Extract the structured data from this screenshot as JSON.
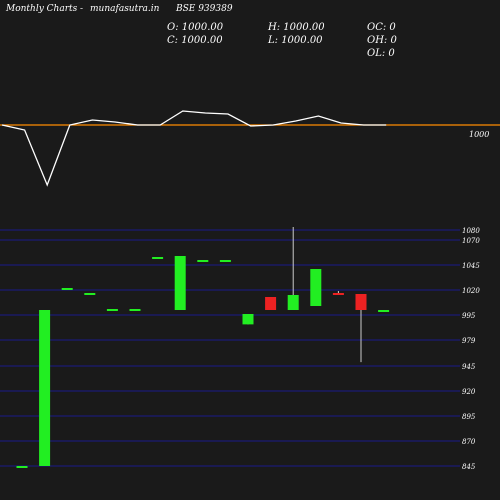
{
  "header": {
    "title": "Monthly Charts",
    "separator": "-",
    "site": "munafasutra.in",
    "symbol": "BSE 939389"
  },
  "ohlc": {
    "o": "O: 1000.00",
    "h": "H: 1000.00",
    "oc": "OC: 0",
    "c": "C: 1000.00",
    "l": "L: 1000.00",
    "oh": "OH: 0",
    "ol": "OL: 0"
  },
  "colors": {
    "background": "#1a1a1a",
    "up": "#22ee22",
    "down": "#ee2222",
    "gridline": "#1a1a8a",
    "reference_line": "#ff8c00",
    "indicator_line": "#ffffff"
  },
  "chart_data": [
    {
      "type": "line",
      "reference_value": 1000,
      "reference_label": "1000",
      "values": [
        1000,
        995,
        940,
        1000,
        1005,
        1003,
        1000,
        1000,
        1014,
        1012,
        1011,
        999,
        1000,
        1004,
        1009,
        1002,
        1000,
        1000
      ]
    },
    {
      "type": "candlestick",
      "ylim": [
        845,
        1085
      ],
      "y_ticks": [
        1080,
        1070,
        1045,
        1020,
        995,
        979,
        945,
        920,
        895,
        870,
        845
      ],
      "candles": [
        {
          "o": 845,
          "h": 845,
          "l": 845,
          "c": 845
        },
        {
          "o": 845,
          "h": 1000,
          "l": 845,
          "c": 1000
        },
        {
          "o": 1022,
          "h": 1022,
          "l": 1022,
          "c": 1022
        },
        {
          "o": 1017,
          "h": 1017,
          "l": 1017,
          "c": 1017
        },
        {
          "o": 1001,
          "h": 1001,
          "l": 1001,
          "c": 1001
        },
        {
          "o": 1001,
          "h": 1001,
          "l": 1001,
          "c": 1001
        },
        {
          "o": 1053,
          "h": 1053,
          "l": 1053,
          "c": 1053
        },
        {
          "o": 1000,
          "h": 1054,
          "l": 1000,
          "c": 1054
        },
        {
          "o": 1050,
          "h": 1050,
          "l": 1050,
          "c": 1050
        },
        {
          "o": 1050,
          "h": 1050,
          "l": 1050,
          "c": 1050
        },
        {
          "o": 989,
          "h": 996,
          "l": 989,
          "c": 996
        },
        {
          "o": 1013,
          "h": 1013,
          "l": 1000,
          "c": 1000
        },
        {
          "o": 1000,
          "h": 1083,
          "l": 1000,
          "c": 1015
        },
        {
          "o": 1004,
          "h": 1041,
          "l": 1004,
          "c": 1041
        },
        {
          "o": 1017,
          "h": 1019,
          "l": 1015,
          "c": 1015
        },
        {
          "o": 1016,
          "h": 1016,
          "l": 950,
          "c": 1000
        },
        {
          "o": 1000,
          "h": 1000,
          "l": 1000,
          "c": 1000
        }
      ]
    }
  ]
}
